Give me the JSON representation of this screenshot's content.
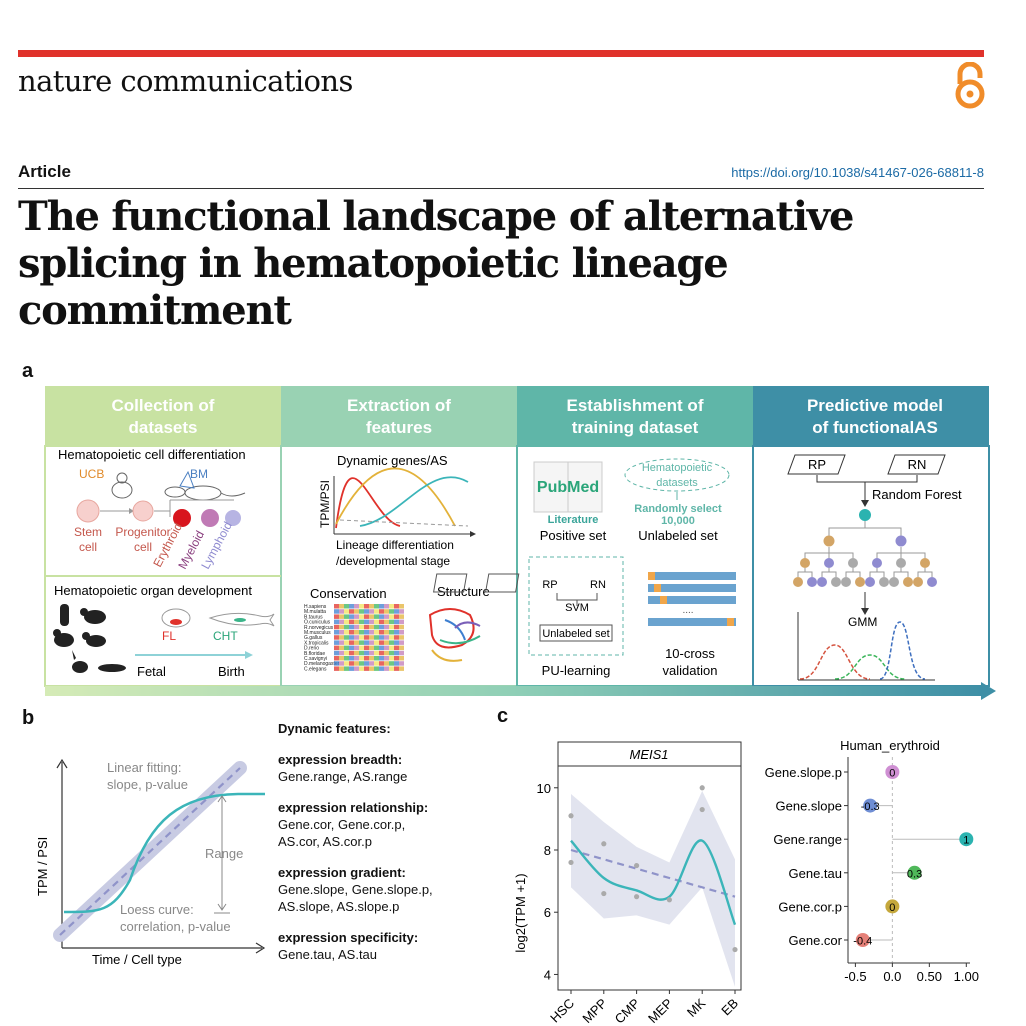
{
  "header": {
    "journal": "nature communications",
    "article_type": "Article",
    "doi": "https://doi.org/10.1038/s41467-026-68811-8",
    "title": "The functional landscape of alternative splicing in hematopoietic lineage commitment",
    "colors": {
      "accent": "#e0322b",
      "open_access": "#f08c2a",
      "doi": "#1b6aa5"
    }
  },
  "panel_a": {
    "label": "a",
    "stages": [
      {
        "title_l1": "Collection of",
        "title_l2": "datasets",
        "color": "#c8e2a2"
      },
      {
        "title_l1": "Extraction of",
        "title_l2": "features",
        "color": "#99d2b3"
      },
      {
        "title_l1": "Establishment of",
        "title_l2": "training dataset",
        "color": "#5fb6a8"
      },
      {
        "title_l1": "Predictive model",
        "title_l2": "of functionalAS",
        "color": "#3e8fa6"
      }
    ],
    "s1": {
      "top_title": "Hematopoietic cell differentiation",
      "ucb": "UCB",
      "bm": "BM",
      "stem_l1": "Stem",
      "stem_l2": "cell",
      "prog_l1": "Progenitor",
      "prog_l2": "cell",
      "lineages": [
        "Erythroid",
        "Myeloid",
        "Lymphoid"
      ],
      "bottom_title": "Hematopoietic organ development",
      "fl": "FL",
      "cht": "CHT",
      "fetal": "Fetal",
      "birth": "Birth"
    },
    "s2": {
      "title": "Dynamic genes/AS",
      "ylabel": "TPM/PSI",
      "xlabel_l1": "Lineage differentiation",
      "xlabel_l2": "/developmental stage",
      "conservation": "Conservation",
      "structure": "Structure",
      "species": [
        "H.sapiens",
        "M.mulatta",
        "B.taurus",
        "O.cuniculus",
        "R.norvegicus",
        "M.musculus",
        "G.gallus",
        "X.tropicalis",
        "D.rerio",
        "B.floridae",
        "C.savignyi",
        "D.melanogaster",
        "C.elegans"
      ]
    },
    "s3": {
      "pubmed": "PubMed",
      "literature": "Literature",
      "positive": "Positive set",
      "hema_l1": "Hematopoietic",
      "hema_l2": "datasets",
      "random_l1": "Randomly select",
      "random_l2": "10,000",
      "unlabeled": "Unlabeled set",
      "rp": "RP",
      "rn": "RN",
      "svm": "SVM",
      "unlabeled_box": "Unlabeled set",
      "dots": "....",
      "pu": "PU-learning",
      "cv_l1": "10-cross",
      "cv_l2": "validation"
    },
    "s4": {
      "rp": "RP",
      "rn": "RN",
      "rf": "Random Forest",
      "gmm": "GMM"
    }
  },
  "panel_b": {
    "label": "b",
    "linear_l1": "Linear fitting:",
    "linear_l2": "slope, p-value",
    "range": "Range",
    "loess_l1": "Loess curve:",
    "loess_l2": "correlation, p-value",
    "ylabel": "TPM / PSI",
    "xlabel": "Time / Cell type",
    "features_title": "Dynamic features:",
    "features": [
      {
        "head": "expression breadth:",
        "l1": "Gene.range, AS.range",
        "l2": ""
      },
      {
        "head": "expression relationship:",
        "l1": "Gene.cor, Gene.cor.p,",
        "l2": "AS.cor, AS.cor.p"
      },
      {
        "head": "expression gradient:",
        "l1": "Gene.slope, Gene.slope.p,",
        "l2": "AS.slope, AS.slope.p"
      },
      {
        "head": "expression specificity:",
        "l1": "Gene.tau, AS.tau",
        "l2": ""
      }
    ]
  },
  "panel_c": {
    "label": "c",
    "chart_data": [
      {
        "type": "line",
        "title": "MEIS1",
        "ylabel": "log2(TPM +1)",
        "categories": [
          "HSC",
          "MPP",
          "CMP",
          "MEP",
          "MK",
          "EB"
        ],
        "ylim": [
          3.5,
          10.7
        ],
        "yticks": [
          4,
          6,
          8,
          10
        ],
        "loess": [
          8.3,
          7.1,
          6.7,
          6.5,
          8.3,
          5.6
        ],
        "linear": [
          8.0,
          7.7,
          7.4,
          7.1,
          6.8,
          6.5
        ],
        "points": [
          {
            "x": "HSC",
            "y": 9.1
          },
          {
            "x": "HSC",
            "y": 7.6
          },
          {
            "x": "MPP",
            "y": 8.2
          },
          {
            "x": "MPP",
            "y": 6.6
          },
          {
            "x": "CMP",
            "y": 7.5
          },
          {
            "x": "CMP",
            "y": 6.5
          },
          {
            "x": "MEP",
            "y": 6.4
          },
          {
            "x": "MK",
            "y": 10.0
          },
          {
            "x": "MK",
            "y": 9.3
          },
          {
            "x": "EB",
            "y": 4.8
          }
        ],
        "colors": {
          "loess": "#3bb5b9",
          "linear": "#8f93c9",
          "band": "#d6d8e8"
        }
      },
      {
        "type": "scatter",
        "title": "Human_erythroid",
        "categories": [
          "Gene.slope.p",
          "Gene.slope",
          "Gene.range",
          "Gene.tau",
          "Gene.cor.p",
          "Gene.cor"
        ],
        "values": [
          0,
          -0.3,
          1,
          0.3,
          0,
          -0.4
        ],
        "labels": [
          "0",
          "-0.3",
          "1",
          "0.3",
          "0",
          "-0.4"
        ],
        "colors": [
          "#cf8fd3",
          "#6f8ed4",
          "#2bb3b0",
          "#4fb85a",
          "#c5a83c",
          "#e58078"
        ],
        "xlim": [
          -0.6,
          1.05
        ],
        "xticks": [
          -0.5,
          0,
          0.5,
          1
        ],
        "xticklabels": [
          "-0.5",
          "0.0",
          "0.50",
          "1.00"
        ]
      }
    ]
  }
}
